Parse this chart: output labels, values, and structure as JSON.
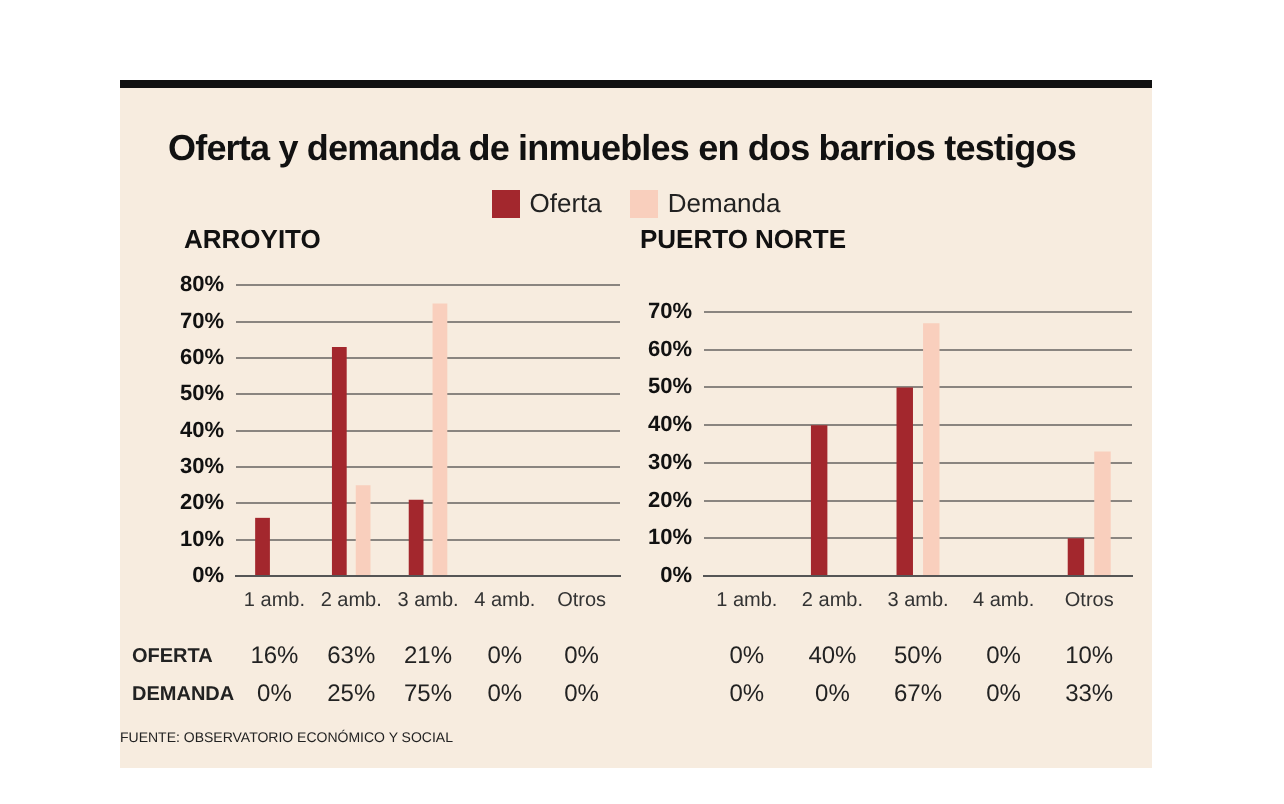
{
  "chart_data": [
    {
      "type": "bar",
      "title": "Oferta y demanda de inmuebles en dos barrios testigos",
      "subtitle": "ARROYITO",
      "categories": [
        "1 amb.",
        "2 amb.",
        "3 amb.",
        "4 amb.",
        "Otros"
      ],
      "series": [
        {
          "name": "Oferta",
          "color": "#a3272d",
          "values": [
            16,
            63,
            21,
            0,
            0
          ],
          "value_labels": [
            "16%",
            "63%",
            "21%",
            "0%",
            "0%"
          ]
        },
        {
          "name": "Demanda",
          "color": "#f9cfbd",
          "values": [
            0,
            25,
            75,
            0,
            0
          ],
          "value_labels": [
            "0%",
            "25%",
            "75%",
            "0%",
            "0%"
          ]
        }
      ],
      "ylim": [
        0,
        80
      ],
      "yticks": [
        {
          "value": 0,
          "label": "0%"
        },
        {
          "value": 10,
          "label": "10%"
        },
        {
          "value": 20,
          "label": "20%"
        },
        {
          "value": 30,
          "label": "30%"
        },
        {
          "value": 40,
          "label": "40%"
        },
        {
          "value": 50,
          "label": "50%"
        },
        {
          "value": 60,
          "label": "60%"
        },
        {
          "value": 70,
          "label": "70%"
        },
        {
          "value": 80,
          "label": "80%"
        }
      ],
      "grid": "y",
      "legend": "top",
      "annotations": [
        "OFERTA",
        "DEMANDA",
        "FUENTE: OBSERVATORIO ECONÓMICO Y SOCIAL"
      ]
    },
    {
      "type": "bar",
      "subtitle": "PUERTO NORTE",
      "categories": [
        "1 amb.",
        "2 amb.",
        "3 amb.",
        "4 amb.",
        "Otros"
      ],
      "series": [
        {
          "color": "#a3272d",
          "values": [
            0,
            40,
            50,
            0,
            10
          ],
          "value_labels": [
            "0%",
            "40%",
            "50%",
            "0%",
            "10%"
          ]
        },
        {
          "color": "#f9cfbd",
          "values": [
            0,
            0,
            67,
            0,
            33
          ],
          "value_labels": [
            "0%",
            "0%",
            "67%",
            "0%",
            "33%"
          ]
        }
      ],
      "ylim": [
        0,
        70
      ],
      "yticks": [
        {
          "value": 0,
          "label": "0%"
        },
        {
          "value": 10,
          "label": "10%"
        },
        {
          "value": 20,
          "label": "20%"
        },
        {
          "value": 30,
          "label": "30%"
        },
        {
          "value": 40,
          "label": "40%"
        },
        {
          "value": 50,
          "label": "50%"
        },
        {
          "value": 60,
          "label": "60%"
        },
        {
          "value": 70,
          "label": "70%"
        }
      ],
      "grid": "y"
    }
  ]
}
